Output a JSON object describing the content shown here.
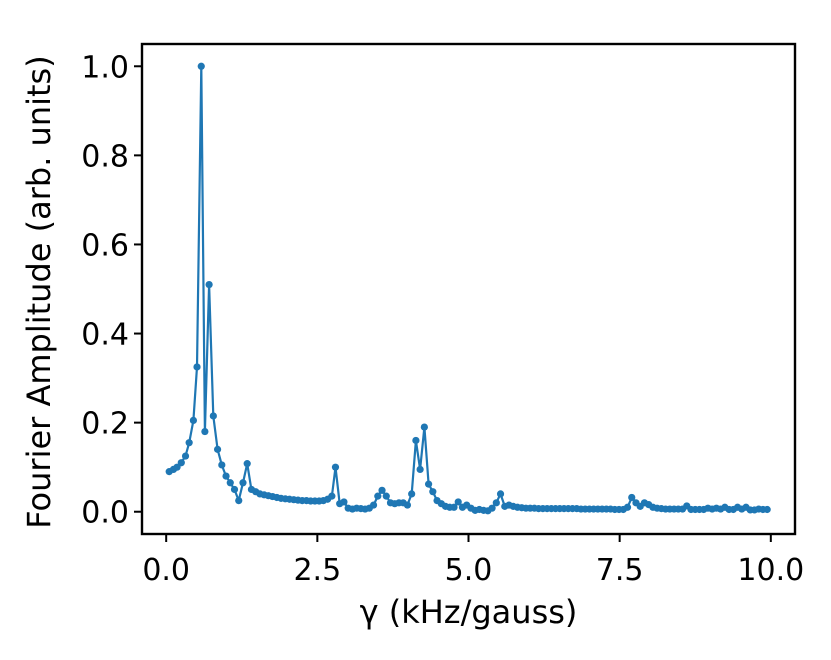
{
  "chart_data": {
    "type": "line",
    "title": "",
    "xlabel": "γ (kHz/gauss)",
    "ylabel": "Fourier Amplitude (arb. units)",
    "xlim": [
      -0.4,
      10.4
    ],
    "ylim": [
      -0.05,
      1.05
    ],
    "xticks": [
      0.0,
      2.5,
      5.0,
      7.5,
      10.0
    ],
    "xtick_labels": [
      "0.0",
      "2.5",
      "5.0",
      "7.5",
      "10.0"
    ],
    "yticks": [
      0.0,
      0.2,
      0.4,
      0.6,
      0.8,
      1.0
    ],
    "ytick_labels": [
      "0.0",
      "0.2",
      "0.4",
      "0.6",
      "0.8",
      "1.0"
    ],
    "grid": false,
    "legend": "none",
    "series_color": "#1f77b4",
    "series": [
      {
        "x": [
          0.05,
          0.12,
          0.18,
          0.25,
          0.32,
          0.38,
          0.45,
          0.51,
          0.58,
          0.64,
          0.71,
          0.78,
          0.85,
          0.92,
          0.99,
          1.06,
          1.13,
          1.2,
          1.27,
          1.34,
          1.41,
          1.48,
          1.55,
          1.62,
          1.69,
          1.76,
          1.83,
          1.9,
          1.97,
          2.04,
          2.11,
          2.18,
          2.25,
          2.32,
          2.39,
          2.46,
          2.53,
          2.6,
          2.67,
          2.74,
          2.8,
          2.87,
          2.94,
          3.01,
          3.08,
          3.15,
          3.22,
          3.29,
          3.36,
          3.43,
          3.5,
          3.57,
          3.64,
          3.71,
          3.78,
          3.85,
          3.92,
          3.99,
          4.06,
          4.13,
          4.2,
          4.27,
          4.34,
          4.41,
          4.48,
          4.55,
          4.62,
          4.69,
          4.76,
          4.83,
          4.9,
          4.97,
          5.04,
          5.11,
          5.18,
          5.25,
          5.32,
          5.39,
          5.46,
          5.53,
          5.6,
          5.67,
          5.74,
          5.81,
          5.88,
          5.95,
          6.02,
          6.09,
          6.16,
          6.23,
          6.3,
          6.37,
          6.44,
          6.51,
          6.58,
          6.65,
          6.72,
          6.79,
          6.86,
          6.93,
          7.0,
          7.07,
          7.14,
          7.21,
          7.28,
          7.35,
          7.42,
          7.49,
          7.56,
          7.63,
          7.7,
          7.77,
          7.84,
          7.91,
          7.98,
          8.05,
          8.12,
          8.19,
          8.26,
          8.33,
          8.4,
          8.47,
          8.54,
          8.61,
          8.68,
          8.75,
          8.82,
          8.89,
          8.96,
          9.03,
          9.1,
          9.17,
          9.24,
          9.31,
          9.38,
          9.45,
          9.52,
          9.59,
          9.66,
          9.73,
          9.8,
          9.87,
          9.94
        ],
        "y": [
          0.09,
          0.095,
          0.1,
          0.11,
          0.125,
          0.155,
          0.205,
          0.325,
          1.0,
          0.18,
          0.51,
          0.215,
          0.14,
          0.105,
          0.08,
          0.065,
          0.05,
          0.025,
          0.065,
          0.108,
          0.05,
          0.045,
          0.04,
          0.038,
          0.036,
          0.034,
          0.032,
          0.03,
          0.029,
          0.028,
          0.027,
          0.026,
          0.025,
          0.025,
          0.024,
          0.024,
          0.024,
          0.025,
          0.028,
          0.035,
          0.1,
          0.018,
          0.022,
          0.008,
          0.006,
          0.008,
          0.007,
          0.006,
          0.008,
          0.015,
          0.035,
          0.048,
          0.035,
          0.02,
          0.018,
          0.02,
          0.02,
          0.015,
          0.04,
          0.16,
          0.095,
          0.19,
          0.062,
          0.045,
          0.025,
          0.018,
          0.012,
          0.01,
          0.01,
          0.022,
          0.01,
          0.015,
          0.008,
          0.003,
          0.005,
          0.003,
          0.002,
          0.008,
          0.02,
          0.04,
          0.012,
          0.015,
          0.012,
          0.01,
          0.009,
          0.008,
          0.008,
          0.008,
          0.007,
          0.007,
          0.007,
          0.007,
          0.007,
          0.007,
          0.007,
          0.007,
          0.007,
          0.007,
          0.006,
          0.006,
          0.006,
          0.006,
          0.006,
          0.006,
          0.006,
          0.006,
          0.005,
          0.005,
          0.005,
          0.01,
          0.032,
          0.02,
          0.012,
          0.02,
          0.016,
          0.01,
          0.008,
          0.007,
          0.006,
          0.006,
          0.006,
          0.006,
          0.006,
          0.013,
          0.005,
          0.005,
          0.005,
          0.005,
          0.008,
          0.006,
          0.008,
          0.006,
          0.01,
          0.005,
          0.005,
          0.01,
          0.006,
          0.01,
          0.004,
          0.004,
          0.006,
          0.005,
          0.005
        ]
      }
    ]
  }
}
